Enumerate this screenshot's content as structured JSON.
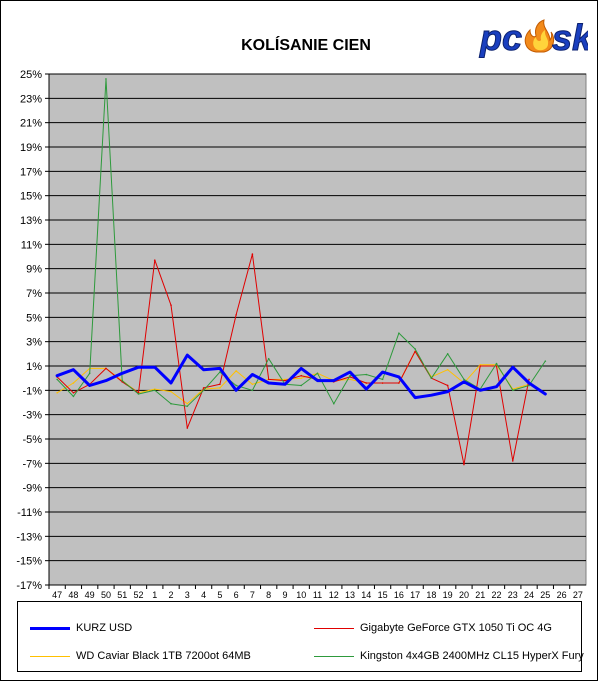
{
  "brand": {
    "logo_text": "pcosk",
    "logo_blue": "#1a3fbf",
    "logo_flame_outer": "#f28a1a",
    "logo_flame_inner": "#ffd43b"
  },
  "chart_data": {
    "type": "line",
    "title": "KOLÍSANIE CIEN",
    "xlabel": "",
    "ylabel": "",
    "categories": [
      "47",
      "48",
      "49",
      "50",
      "51",
      "52",
      "1",
      "2",
      "3",
      "4",
      "5",
      "6",
      "7",
      "8",
      "9",
      "10",
      "11",
      "12",
      "13",
      "14",
      "15",
      "16",
      "17",
      "18",
      "19",
      "20",
      "21",
      "22",
      "23",
      "24",
      "25",
      "26",
      "27"
    ],
    "ylim": [
      -17,
      25
    ],
    "yticks": [
      25,
      23,
      21,
      19,
      17,
      15,
      13,
      11,
      9,
      7,
      5,
      3,
      1,
      -1,
      -3,
      -5,
      -7,
      -9,
      -11,
      -13,
      -15,
      -17
    ],
    "ytick_suffix": "%",
    "grid": true,
    "plot_background": "#c0c0c0",
    "legend_position": "bottom",
    "series": [
      {
        "name": "KURZ USD",
        "color": "#0000ff",
        "width": 3,
        "values": [
          0.2,
          0.7,
          -0.6,
          -0.2,
          0.4,
          0.9,
          0.9,
          -0.4,
          1.9,
          0.7,
          0.8,
          -1.0,
          0.3,
          -0.4,
          -0.5,
          0.8,
          -0.2,
          -0.2,
          0.5,
          -0.9,
          0.5,
          0.1,
          -1.6,
          -1.4,
          -1.1,
          -0.3,
          -1.0,
          -0.7,
          0.9,
          -0.4,
          -1.3,
          null,
          null
        ]
      },
      {
        "name": "Gigabyte GeForce GTX 1050 Ti OC 4G",
        "color": "#e00000",
        "width": 1,
        "values": [
          0.1,
          -1.2,
          -0.5,
          0.8,
          -0.3,
          -1.2,
          9.7,
          6.0,
          -4.1,
          -0.8,
          -0.5,
          5.2,
          10.2,
          -0.1,
          -0.2,
          0.2,
          -0.1,
          -0.3,
          0.1,
          -0.4,
          -0.4,
          -0.4,
          2.2,
          0.0,
          -0.6,
          -7.1,
          1.0,
          1.0,
          -6.8,
          -0.1,
          null,
          null,
          null
        ]
      },
      {
        "name": "WD Caviar Black 1TB 7200ot 64MB",
        "color": "#ffc000",
        "width": 1,
        "values": [
          -1.2,
          -0.4,
          0.8,
          0.8,
          -0.2,
          -1.2,
          -0.9,
          -1.1,
          -2.1,
          -0.9,
          -0.8,
          0.6,
          -0.5,
          -0.1,
          -0.1,
          0.0,
          0.4,
          -0.2,
          -0.1,
          -0.4,
          -0.4,
          -0.4,
          2.2,
          0.1,
          0.7,
          -0.4,
          1.1,
          1.1,
          -0.9,
          -0.5,
          null,
          null,
          null
        ]
      },
      {
        "name": "Kingston 4x4GB 2400MHz CL15 HyperX Fury",
        "color": "#2e9a3c",
        "width": 1,
        "values": [
          -0.1,
          -1.5,
          0.4,
          24.6,
          -0.2,
          -1.3,
          -1.0,
          -2.1,
          -2.3,
          -1.0,
          0.5,
          -0.6,
          -1.0,
          1.6,
          -0.5,
          -0.6,
          0.4,
          -2.1,
          0.2,
          0.3,
          -0.1,
          3.7,
          2.4,
          0.0,
          2.0,
          -0.1,
          -0.9,
          1.2,
          -1.0,
          -0.6,
          1.4,
          null,
          null
        ]
      }
    ]
  }
}
